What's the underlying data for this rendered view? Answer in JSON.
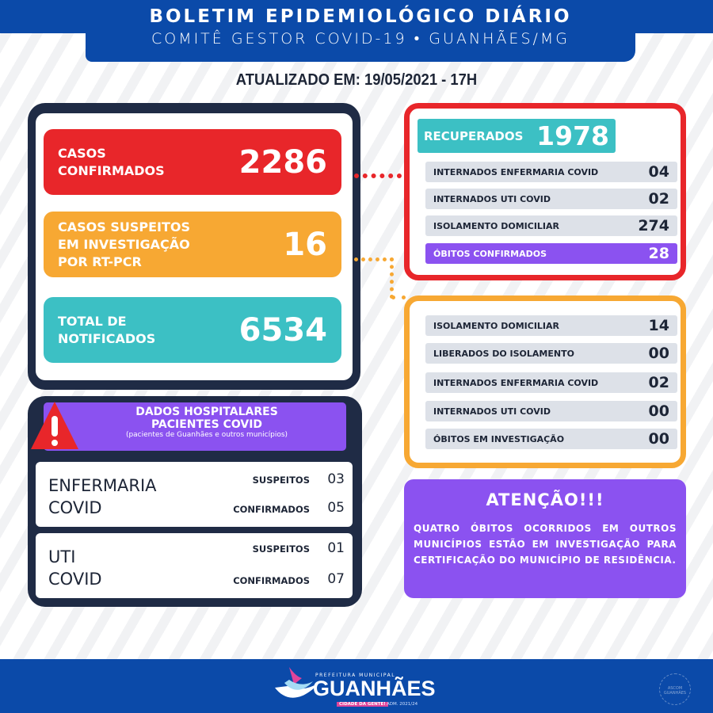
{
  "header": {
    "title": "BOLETIM EPIDEMIOLÓGICO DIÁRIO",
    "subtitle": "COMITÊ GESTOR COVID-19 • GUANHÃES/MG",
    "updated": "ATUALIZADO EM: 19/05/2021 - 17H"
  },
  "main_stats": [
    {
      "label_1": "CASOS",
      "label_2": "CONFIRMADOS",
      "label_3": "",
      "value": "2286",
      "color": "#e8262a"
    },
    {
      "label_1": "CASOS SUSPEITOS",
      "label_2": "EM INVESTIGAÇÃO",
      "label_3": "POR RT-PCR",
      "value": "16",
      "color": "#f7a833"
    },
    {
      "label_1": "TOTAL DE",
      "label_2": "NOTIFICADOS",
      "label_3": "",
      "value": "6534",
      "color": "#3cc0c4"
    }
  ],
  "confirmed_panel": {
    "recovered_label": "RECUPERADOS",
    "recovered_value": "1978",
    "rows": [
      {
        "label": "INTERNADOS ENFERMARIA COVID",
        "value": "04"
      },
      {
        "label": "INTERNADOS UTI COVID",
        "value": "02"
      },
      {
        "label": "ISOLAMENTO DOMICILIAR",
        "value": "274"
      },
      {
        "label": "ÓBITOS CONFIRMADOS",
        "value": "28"
      }
    ]
  },
  "suspect_panel": {
    "rows": [
      {
        "label": "ISOLAMENTO DOMICILIAR",
        "value": "14"
      },
      {
        "label": "LIBERADOS DO ISOLAMENTO",
        "value": "00"
      },
      {
        "label": "INTERNADOS ENFERMARIA COVID",
        "value": "02"
      },
      {
        "label": "INTERNADOS UTI COVID",
        "value": "00"
      },
      {
        "label": "ÓBITOS EM INVESTIGAÇÃO",
        "value": "00"
      }
    ]
  },
  "hospital": {
    "title_1": "DADOS HOSPITALARES",
    "title_2": "PACIENTES COVID",
    "note": "(pacientes de Guanhães e outros municípios)",
    "cards": [
      {
        "name_1": "ENFERMARIA",
        "name_2": "COVID",
        "suspect_label": "SUSPEITOS",
        "suspect_value": "03",
        "confirmed_label": "CONFIRMADOS",
        "confirmed_value": "05"
      },
      {
        "name_1": "UTI",
        "name_2": "COVID",
        "suspect_label": "SUSPEITOS",
        "suspect_value": "01",
        "confirmed_label": "CONFIRMADOS",
        "confirmed_value": "07"
      }
    ]
  },
  "attention": {
    "title": "ATENÇÃO!!!",
    "text": "QUATRO ÓBITOS OCORRIDOS EM OUTROS MUNICÍPIOS ESTÃO EM INVESTIGAÇÃO PARA CERTIFICAÇÃO DO MUNICÍPIO DE RESIDÊNCIA."
  },
  "footer": {
    "logo_top": "PREFEITURA MUNICIPAL",
    "logo_name": "GUANHÃES",
    "logo_tag": "CIDADE DA GENTE!",
    "logo_adm": "ADM. 2021/24",
    "stamp": "ASCOM GUANHÃES"
  },
  "colors": {
    "blue": "#0b4aa9",
    "navy": "#1f2b45",
    "red": "#e8262a",
    "orange": "#f7a833",
    "teal": "#3cc0c4",
    "purple": "#8b52f0"
  }
}
